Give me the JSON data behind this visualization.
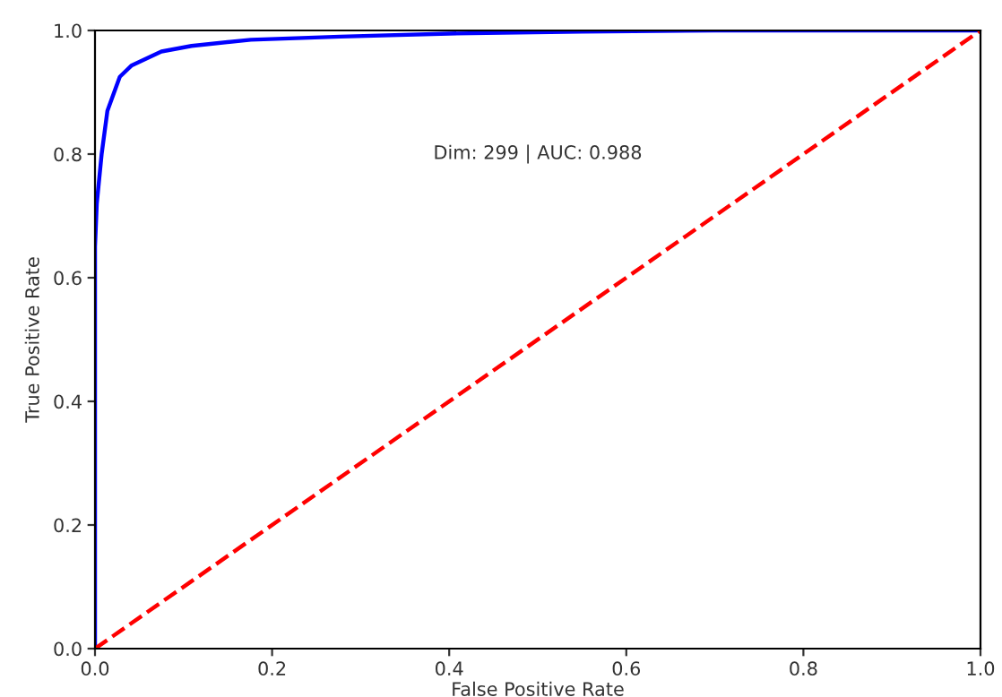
{
  "chart_data": {
    "type": "line",
    "xlabel": "False Positive Rate",
    "ylabel": "True Positive Rate",
    "annotations": [
      "Dim: 299 | AUC: 0.988"
    ],
    "series": [
      {
        "color": "#0000ff",
        "x": [
          0,
          0,
          0.002,
          0.0075,
          0.014,
          0.028,
          0.041,
          0.075,
          0.109,
          0.176,
          0.277,
          0.4,
          0.55,
          0.7,
          1.0
        ],
        "values": [
          0,
          0.65,
          0.72,
          0.8,
          0.87,
          0.925,
          0.943,
          0.966,
          0.975,
          0.985,
          0.99,
          0.995,
          0.998,
          1.0,
          1.0
        ],
        "line_style": "solid"
      },
      {
        "color": "#ff0000",
        "x": [
          0,
          1
        ],
        "values": [
          0,
          1
        ],
        "line_style": "dashed"
      }
    ],
    "xlim": [
      0,
      1
    ],
    "ylim": [
      0,
      1
    ],
    "xticks": [
      {
        "value": 0,
        "label": "0.0"
      },
      0.2,
      0.4,
      0.6,
      0.8,
      {
        "value": 1,
        "label": "1.0"
      }
    ],
    "yticks": [
      {
        "value": 0,
        "label": "0.0"
      },
      0.2,
      0.4,
      0.6,
      0.8,
      {
        "value": 1,
        "label": "1.0"
      }
    ],
    "grid": false,
    "legend": false,
    "marker": "none"
  }
}
